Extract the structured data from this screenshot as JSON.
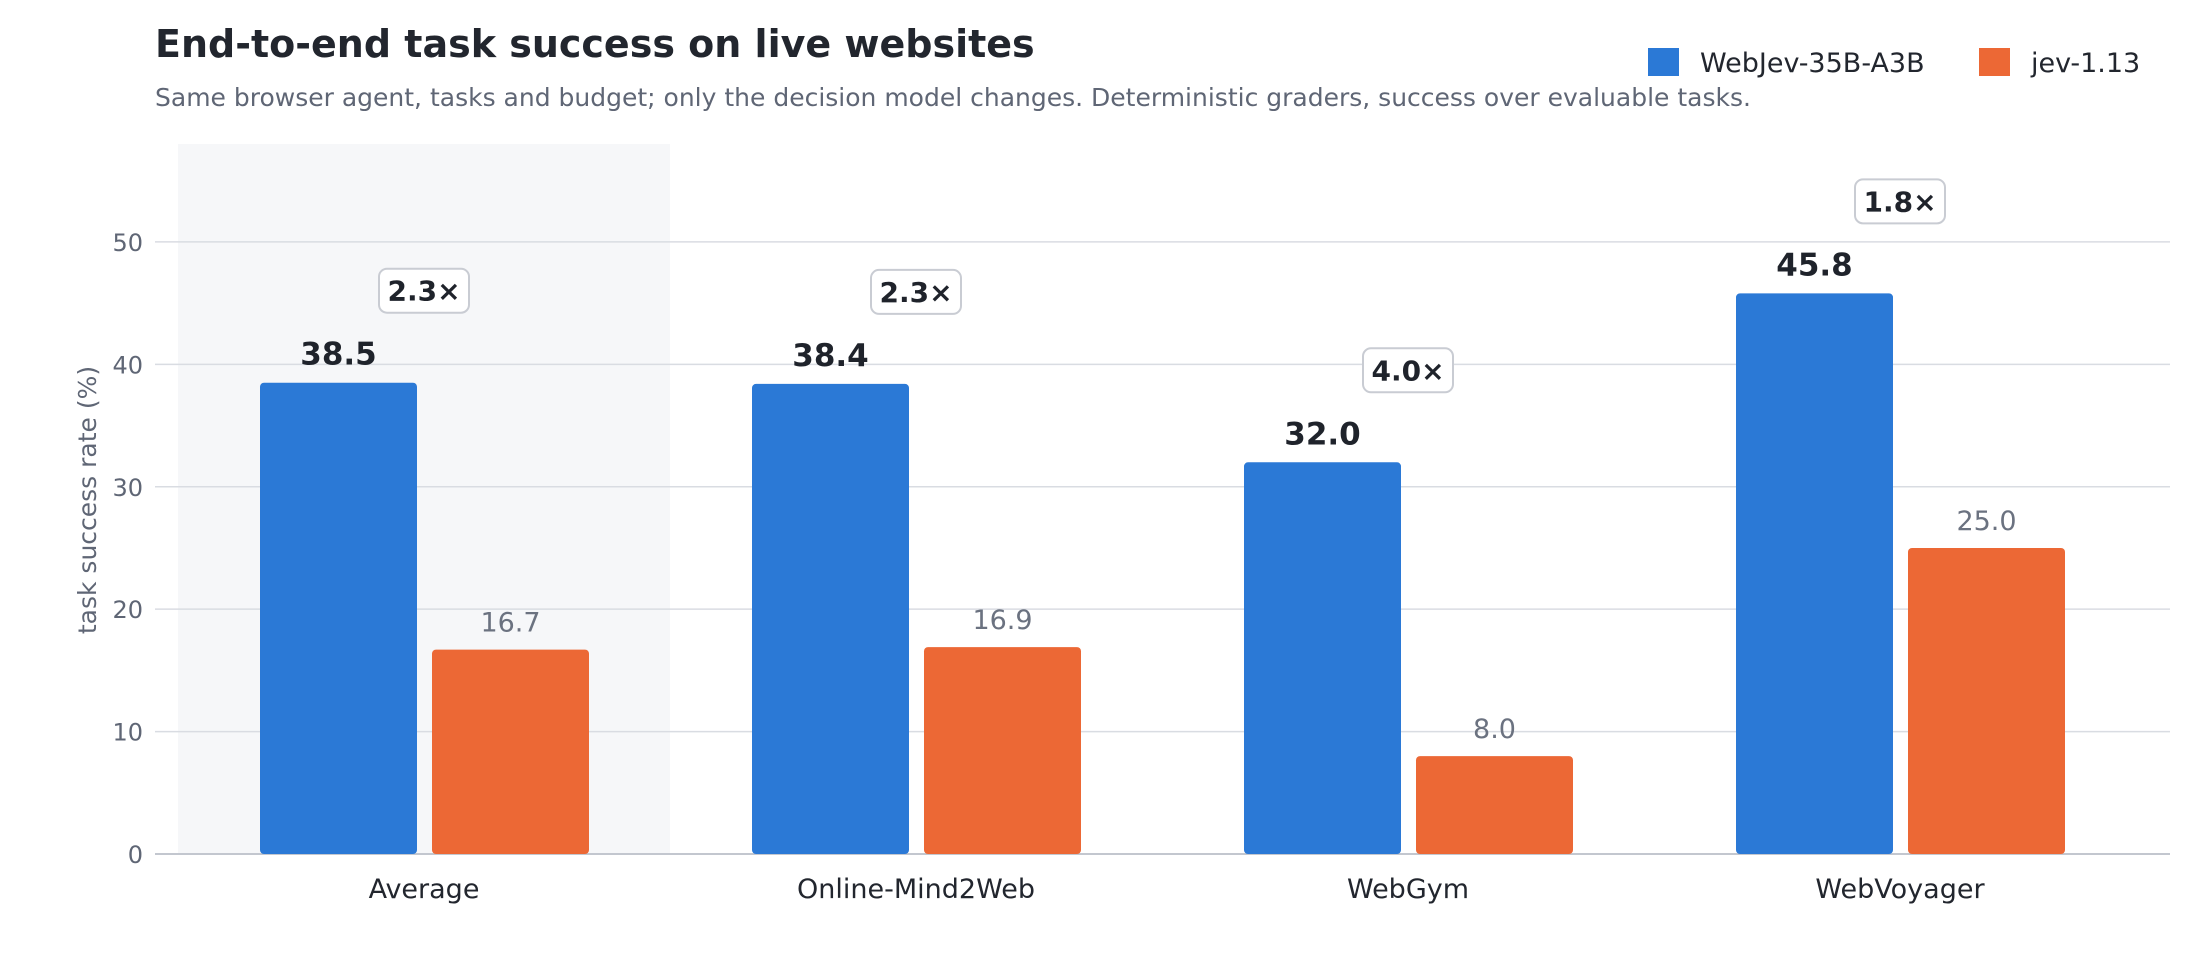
{
  "chart_data": {
    "type": "bar",
    "title": "End-to-end task success on live websites",
    "subtitle": "Same browser agent, tasks and budget; only the decision model changes. Deterministic graders, success over evaluable tasks.",
    "xlabel": "",
    "ylabel": "task success rate (%)",
    "ylim": [
      0,
      58
    ],
    "yticks": [
      0,
      10,
      20,
      30,
      40,
      50
    ],
    "grid": true,
    "legend_position": "top-right",
    "highlighted_category": "Average",
    "categories": [
      "Average",
      "Online-Mind2Web",
      "WebGym",
      "WebVoyager"
    ],
    "series": [
      {
        "name": "WebJev-35B-A3B",
        "values": [
          38.5,
          38.4,
          32.0,
          45.8
        ],
        "color": "#2b79d6"
      },
      {
        "name": "jev-1.13",
        "values": [
          16.7,
          16.9,
          8.0,
          25.0
        ],
        "color": "#ec6835"
      }
    ],
    "value_labels": [
      [
        "38.5",
        "38.4",
        "32.0",
        "45.8"
      ],
      [
        "16.7",
        "16.9",
        "8.0",
        "25.0"
      ]
    ],
    "ratio_labels": [
      "2.3×",
      "2.3×",
      "4.0×",
      "1.8×"
    ]
  }
}
